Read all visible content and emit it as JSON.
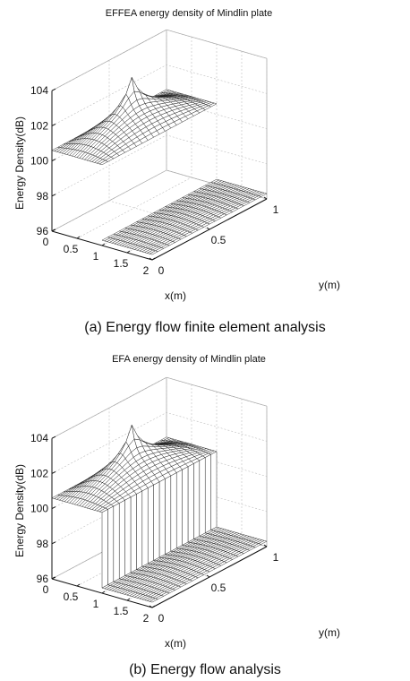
{
  "chart_data": [
    {
      "type": "surface3d",
      "title": "EFFEA energy density of Mindlin plate",
      "caption": "(a) Energy flow finite element analysis",
      "xlabel": "x(m)",
      "ylabel": "y(m)",
      "zlabel": "Energy Density(dB)",
      "xticks": [
        "0",
        "0.5",
        "1",
        "1.5",
        "2"
      ],
      "yticks": [
        "0",
        "0.5",
        "1"
      ],
      "zticks": [
        "96",
        "98",
        "100",
        "102",
        "104"
      ],
      "xlim": [
        0,
        2
      ],
      "ylim": [
        0,
        1
      ],
      "zlim": [
        96,
        104
      ],
      "grid": true,
      "regions": [
        {
          "x_range": [
            0,
            1
          ],
          "y_range": [
            0,
            1
          ],
          "z_edge": 100.6,
          "z_center": 101.6,
          "peak_at": [
            0.45,
            0.5
          ],
          "peak_z": 103.4
        },
        {
          "x_range": [
            1,
            2
          ],
          "y_range": [
            0,
            1
          ],
          "z_edge": 96.3,
          "z_center": 96.45
        }
      ],
      "joint_wall": false
    },
    {
      "type": "surface3d",
      "title": "EFA energy density of Mindlin plate",
      "caption": "(b) Energy flow analysis",
      "xlabel": "x(m)",
      "ylabel": "y(m)",
      "zlabel": "Energy Density(dB)",
      "xticks": [
        "0",
        "0.5",
        "1",
        "1.5",
        "2"
      ],
      "yticks": [
        "0",
        "0.5",
        "1"
      ],
      "zticks": [
        "96",
        "98",
        "100",
        "102",
        "104"
      ],
      "xlim": [
        0,
        2
      ],
      "ylim": [
        0,
        1
      ],
      "zlim": [
        96,
        104
      ],
      "grid": true,
      "regions": [
        {
          "x_range": [
            0,
            1
          ],
          "y_range": [
            0,
            1
          ],
          "z_edge": 100.6,
          "z_center": 101.6,
          "peak_at": [
            0.45,
            0.5
          ],
          "peak_z": 103.4
        },
        {
          "x_range": [
            1,
            2
          ],
          "y_range": [
            0,
            1
          ],
          "z_edge": 96.3,
          "z_center": 96.45
        }
      ],
      "joint_wall": true
    }
  ]
}
